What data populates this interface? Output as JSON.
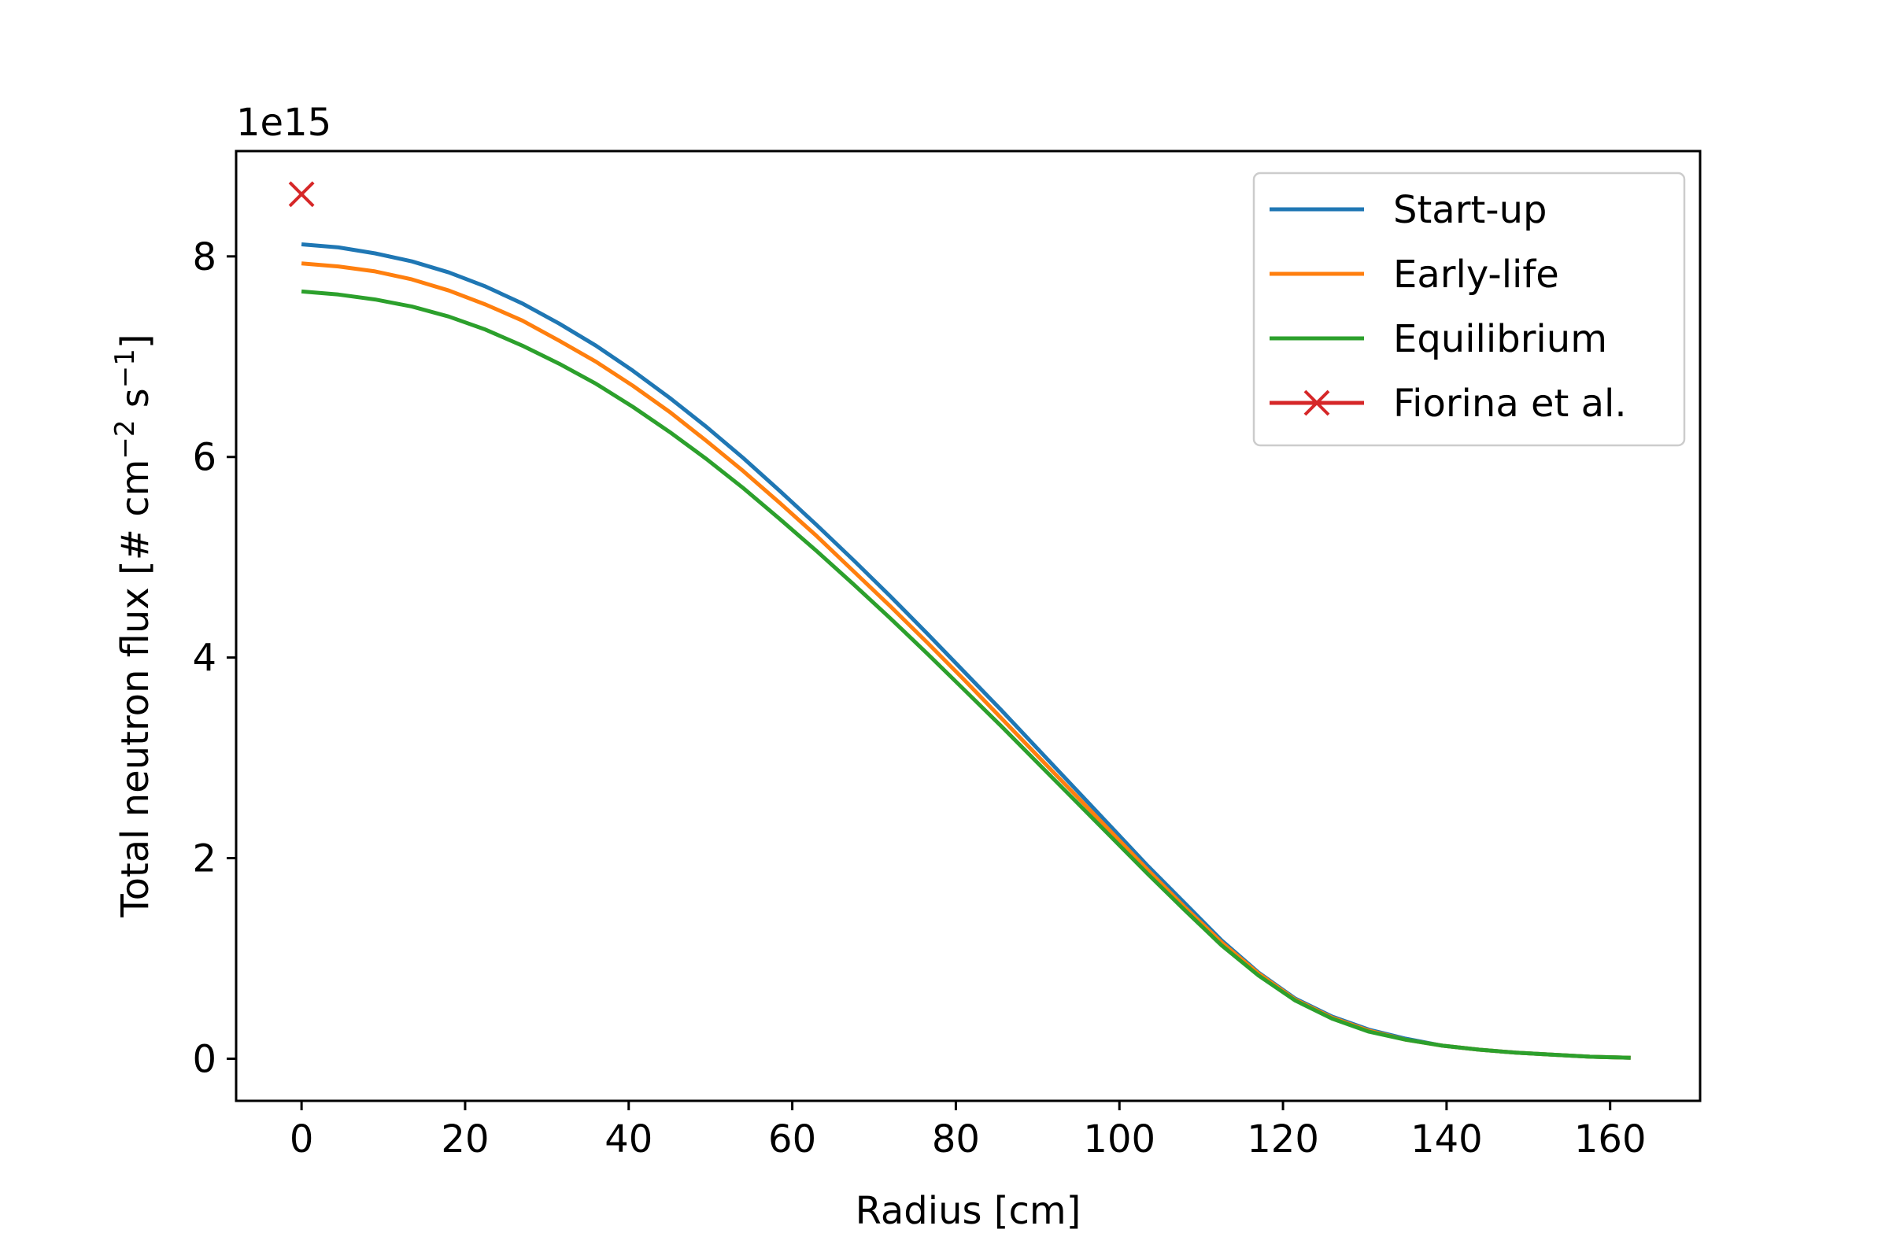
{
  "chart_data": {
    "type": "line",
    "offset_text": "1e15",
    "xlabel": "Radius [cm]",
    "ylabel_main": "Total neutron flux [# cm",
    "ylabel_sup1": "−2",
    "ylabel_mid": " s",
    "ylabel_sup2": "−1",
    "ylabel_end": "]",
    "xlim": [
      -8,
      171
    ],
    "ylim": [
      -0.42,
      9.05
    ],
    "y_scale": 1000000000000000.0,
    "grid": false,
    "legend_position": "top-right",
    "x_ticks": [
      0,
      20,
      40,
      60,
      80,
      100,
      120,
      140,
      160
    ],
    "x_tick_labels": [
      "0",
      "20",
      "40",
      "60",
      "80",
      "100",
      "120",
      "140",
      "160"
    ],
    "y_ticks": [
      0,
      2,
      4,
      6,
      8
    ],
    "y_tick_labels": [
      "0",
      "2",
      "4",
      "6",
      "8"
    ],
    "x": [
      0,
      4.5,
      9,
      13.5,
      18,
      22.5,
      27,
      31.5,
      36,
      40.5,
      45,
      49.5,
      54,
      58.5,
      63,
      67.5,
      72,
      76.5,
      81,
      85.5,
      90,
      94.5,
      99,
      103.5,
      108,
      112.5,
      117,
      121.5,
      126,
      130.5,
      135,
      139.5,
      144,
      148.5,
      153,
      157.5,
      162.5
    ],
    "series": [
      {
        "name": "Start-up",
        "color": "#1f77b4",
        "values": [
          8.12,
          8.09,
          8.03,
          7.95,
          7.84,
          7.7,
          7.53,
          7.33,
          7.11,
          6.86,
          6.59,
          6.3,
          5.99,
          5.66,
          5.32,
          4.97,
          4.61,
          4.24,
          3.86,
          3.48,
          3.09,
          2.7,
          2.31,
          1.92,
          1.55,
          1.18,
          0.86,
          0.6,
          0.42,
          0.29,
          0.2,
          0.13,
          0.09,
          0.06,
          0.04,
          0.02,
          0.01
        ]
      },
      {
        "name": "Early-life",
        "color": "#ff7f0e",
        "values": [
          7.93,
          7.9,
          7.85,
          7.77,
          7.66,
          7.52,
          7.36,
          7.16,
          6.95,
          6.71,
          6.45,
          6.16,
          5.86,
          5.54,
          5.21,
          4.86,
          4.51,
          4.15,
          3.78,
          3.4,
          3.02,
          2.64,
          2.26,
          1.88,
          1.51,
          1.16,
          0.85,
          0.59,
          0.41,
          0.28,
          0.19,
          0.13,
          0.09,
          0.06,
          0.04,
          0.02,
          0.01
        ]
      },
      {
        "name": "Equilibrium",
        "color": "#2ca02c",
        "values": [
          7.65,
          7.62,
          7.57,
          7.5,
          7.4,
          7.27,
          7.11,
          6.93,
          6.73,
          6.5,
          6.25,
          5.98,
          5.69,
          5.38,
          5.06,
          4.73,
          4.39,
          4.04,
          3.68,
          3.32,
          2.95,
          2.58,
          2.21,
          1.84,
          1.48,
          1.13,
          0.83,
          0.58,
          0.4,
          0.27,
          0.19,
          0.13,
          0.09,
          0.06,
          0.04,
          0.02,
          0.01
        ]
      }
    ],
    "reference": {
      "name": "Fiorina et al.",
      "color": "#d62728",
      "marker": "x",
      "x": 0,
      "y": 8.62
    }
  }
}
